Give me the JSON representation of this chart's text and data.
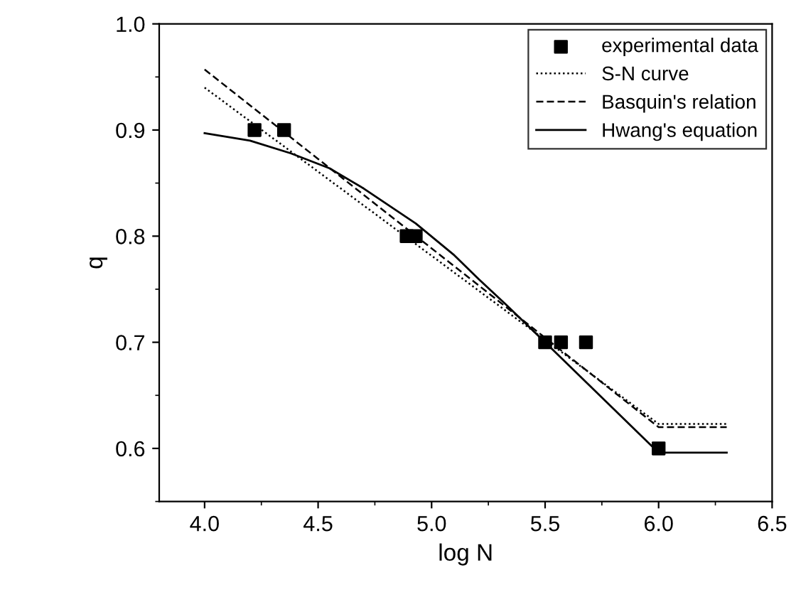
{
  "chart_data": {
    "type": "line",
    "xlabel": "log N",
    "ylabel": "q",
    "xlim": [
      3.8,
      6.5
    ],
    "ylim": [
      0.55,
      1.0
    ],
    "xticks": [
      {
        "value": 4,
        "label": "4.0"
      },
      4.5,
      {
        "value": 5,
        "label": "5.0"
      },
      5.5,
      {
        "value": 6,
        "label": "6.0"
      },
      6.5
    ],
    "yticks": [
      0.6,
      0.7,
      0.8,
      0.9,
      {
        "value": 1,
        "label": "1.0"
      }
    ],
    "grid": false,
    "legend": "top right",
    "series": [
      {
        "name": "experimental data",
        "type": "scatter",
        "marker": "square",
        "color": "#000000",
        "x": [
          4.22,
          4.35,
          4.89,
          4.93,
          5.5,
          5.57,
          5.68,
          6.0
        ],
        "values": [
          0.9,
          0.9,
          0.8,
          0.8,
          0.7,
          0.7,
          0.7,
          0.6
        ]
      },
      {
        "name": "S-N curve",
        "line_style": "dotted",
        "color": "#000000",
        "x": [
          4.0,
          6.0,
          6.3
        ],
        "values": [
          0.94,
          0.623,
          0.623
        ]
      },
      {
        "name": "Basquin's relation",
        "line_style": "dashed",
        "color": "#000000",
        "x": [
          4.0,
          6.0,
          6.3
        ],
        "values": [
          0.957,
          0.62,
          0.62
        ]
      },
      {
        "name": "Hwang's equation",
        "line_style": "solid",
        "color": "#000000",
        "x": [
          4.0,
          4.2,
          4.38,
          4.55,
          4.7,
          4.93,
          5.1,
          5.21,
          5.33,
          5.5,
          6.0,
          6.3
        ],
        "values": [
          0.897,
          0.89,
          0.878,
          0.864,
          0.845,
          0.812,
          0.782,
          0.759,
          0.735,
          0.7,
          0.596,
          0.596
        ]
      }
    ]
  }
}
